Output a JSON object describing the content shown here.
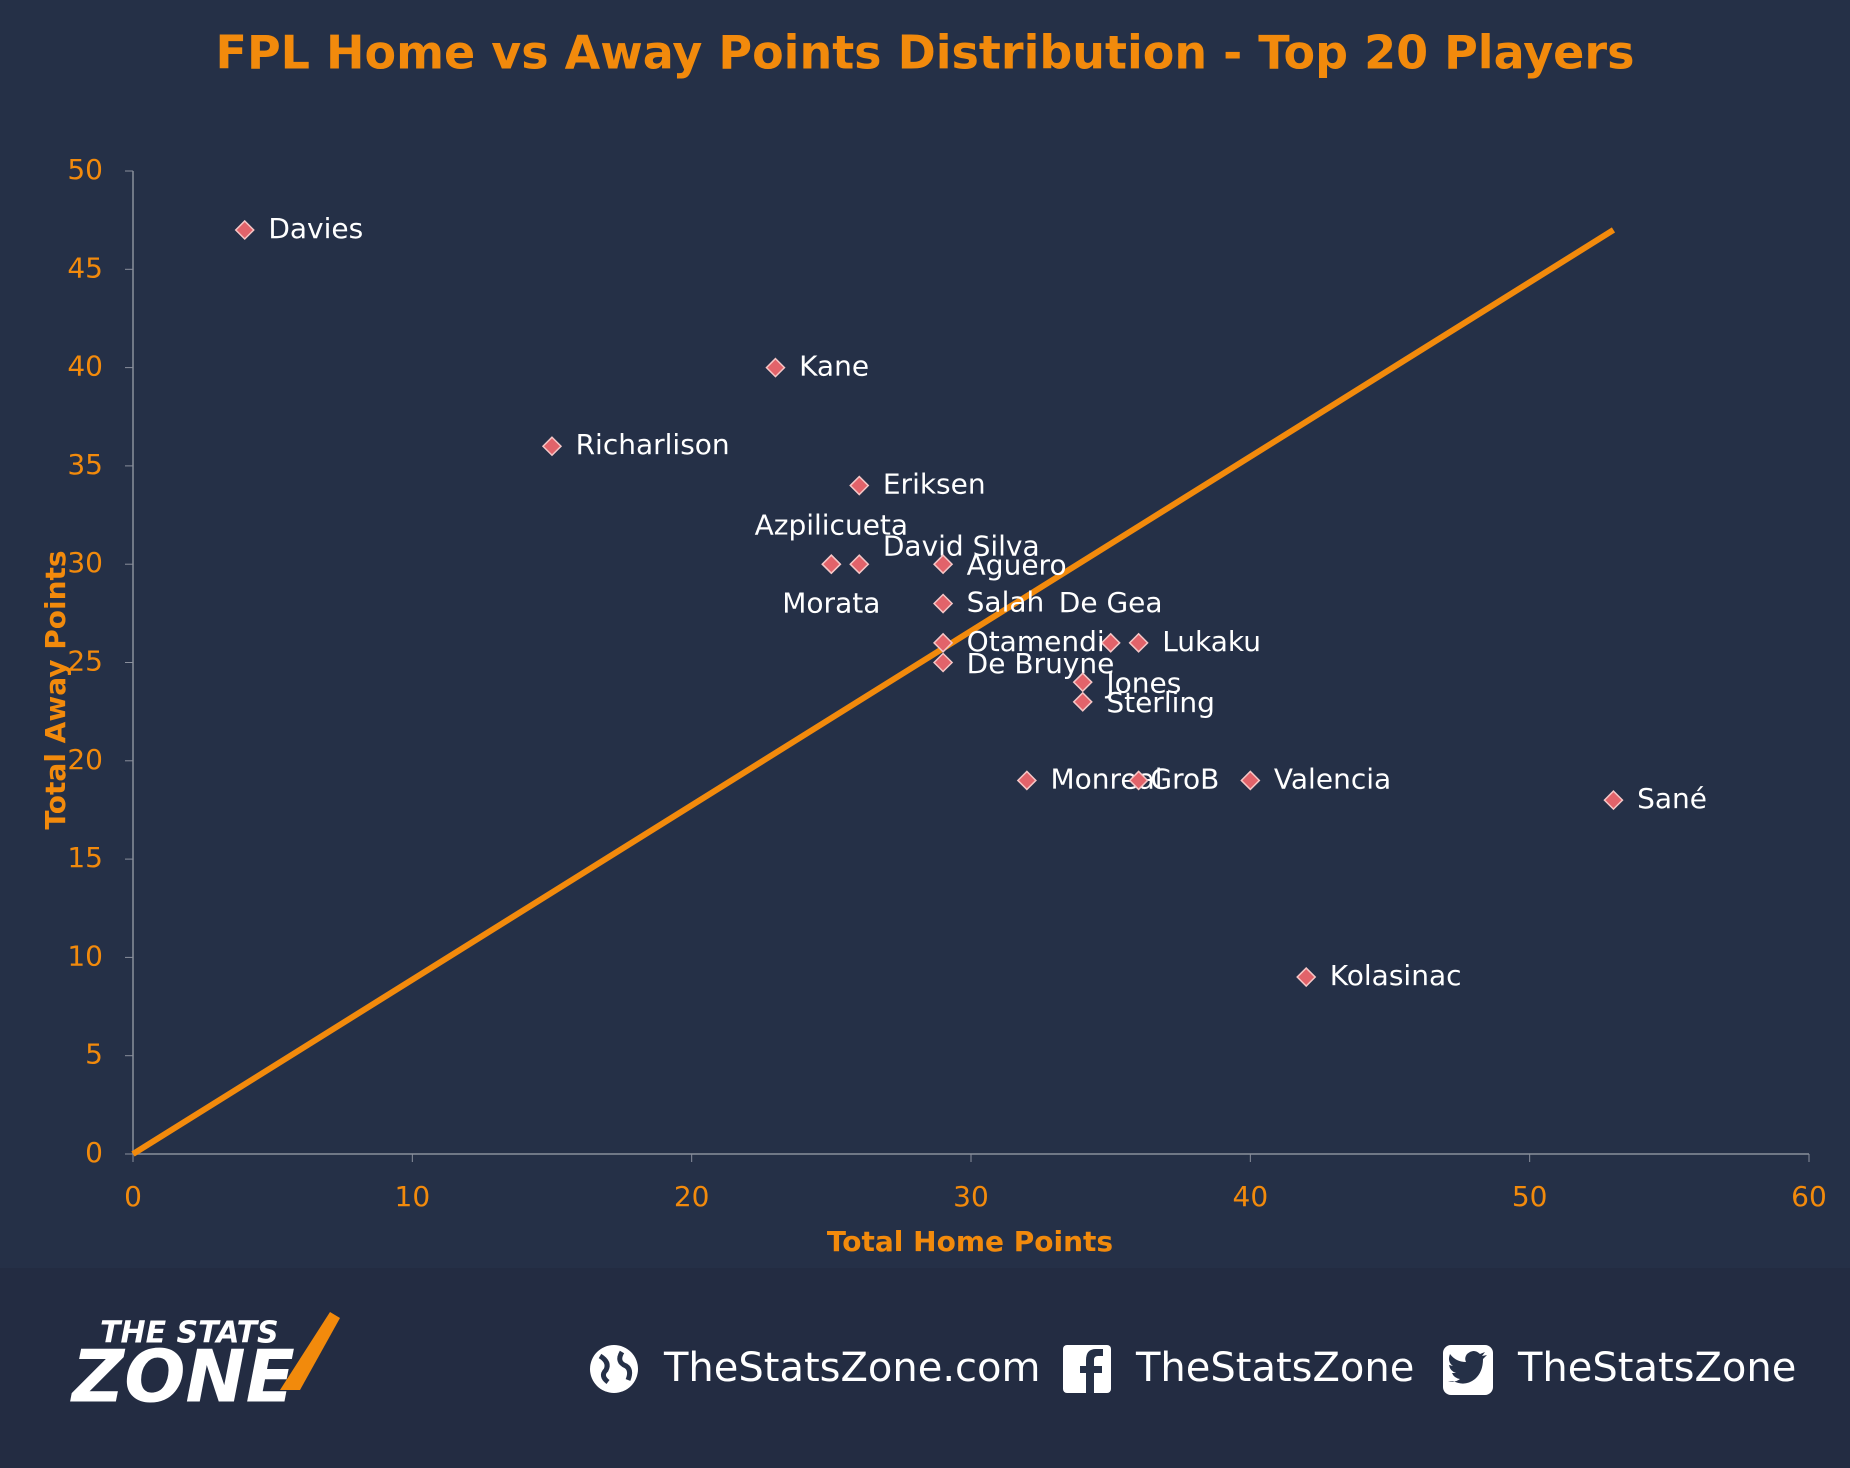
{
  "chart_data": {
    "type": "scatter",
    "title": "FPL Home vs Away Points Distribution - Top 20 Players",
    "x_label": "Total Home Points",
    "y_label": "Total Away Points",
    "labels": [
      "Davies",
      "Kane",
      "Richarlison",
      "Eriksen",
      "Azpilicueta",
      "Morata",
      "David Silva",
      "Aguero",
      "Salah",
      "De Gea",
      "Otamendi",
      "Lukaku",
      "De Bruyne",
      "Jones",
      "Sterling",
      "Monreal",
      "GroB",
      "Valencia",
      "Sané",
      "Kolasinac"
    ],
    "x": [
      4,
      23,
      15,
      26,
      25,
      25,
      26,
      29,
      29,
      35,
      29,
      36,
      29,
      34,
      34,
      32,
      36,
      40,
      53,
      42
    ],
    "values": [
      47,
      40,
      36,
      34,
      30,
      30,
      30,
      30,
      28,
      26,
      26,
      26,
      25,
      24,
      23,
      19,
      19,
      19,
      18,
      9
    ],
    "marker_color": "#e2636a",
    "trend_line": {
      "x": [
        0,
        53
      ],
      "values": [
        0,
        47
      ],
      "color": "#f28a0c"
    },
    "xlim": [
      0,
      60
    ],
    "xticks": [
      0,
      10,
      20,
      30,
      40,
      50,
      60
    ],
    "ylim": [
      0,
      50
    ],
    "yticks": [
      0,
      5,
      10,
      15,
      20,
      25,
      30,
      35,
      40,
      45,
      50
    ]
  },
  "footer": {
    "logo_top": "THE STATS",
    "logo_bottom": "ZONE",
    "website": "TheStatsZone.com",
    "facebook": "TheStatsZone",
    "twitter": "TheStatsZone"
  }
}
